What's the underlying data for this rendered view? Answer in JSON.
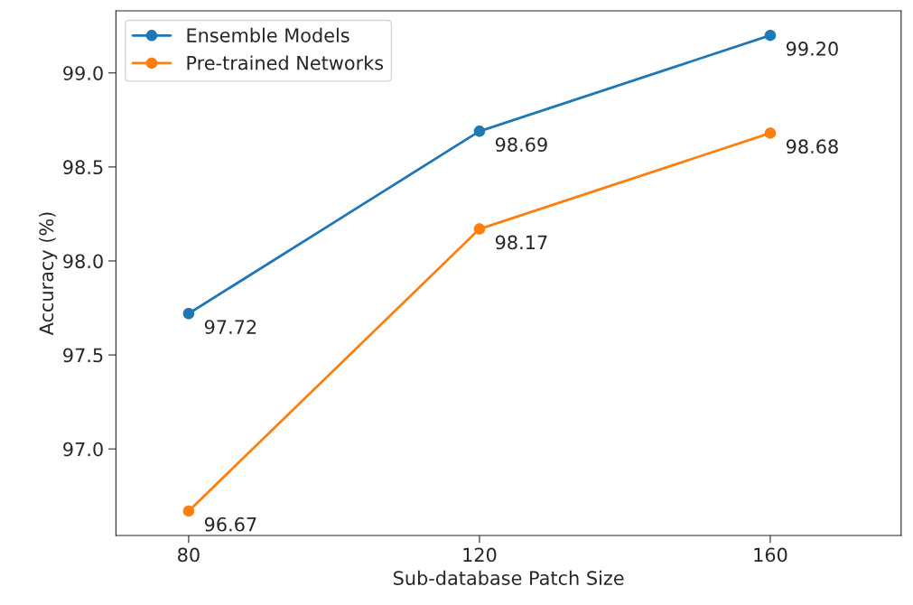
{
  "chart_data": {
    "type": "line",
    "xlabel": "Sub-database Patch Size",
    "ylabel": "Accuracy (%)",
    "x": [
      80,
      120,
      160
    ],
    "series": [
      {
        "name": "Ensemble Models",
        "color": "#1f77b4",
        "values": [
          97.72,
          98.69,
          99.2
        ],
        "value_labels": [
          "97.72",
          "98.69",
          "99.20"
        ]
      },
      {
        "name": "Pre-trained Networks",
        "color": "#ff7f0e",
        "values": [
          96.67,
          98.17,
          98.68
        ],
        "value_labels": [
          "96.67",
          "98.17",
          "98.68"
        ]
      }
    ],
    "xlim": [
      70,
      178
    ],
    "xticks": [
      80,
      120,
      160
    ],
    "ylim": [
      96.54,
      99.33
    ],
    "yticks": [
      {
        "value": 97.0,
        "label": "97.0"
      },
      {
        "value": 97.5,
        "label": "97.5"
      },
      {
        "value": 98.0,
        "label": "98.0"
      },
      {
        "value": 98.5,
        "label": "98.5"
      },
      {
        "value": 99.0,
        "label": "99.0"
      }
    ],
    "marker": "circle",
    "legend": "top left",
    "grid": false
  }
}
